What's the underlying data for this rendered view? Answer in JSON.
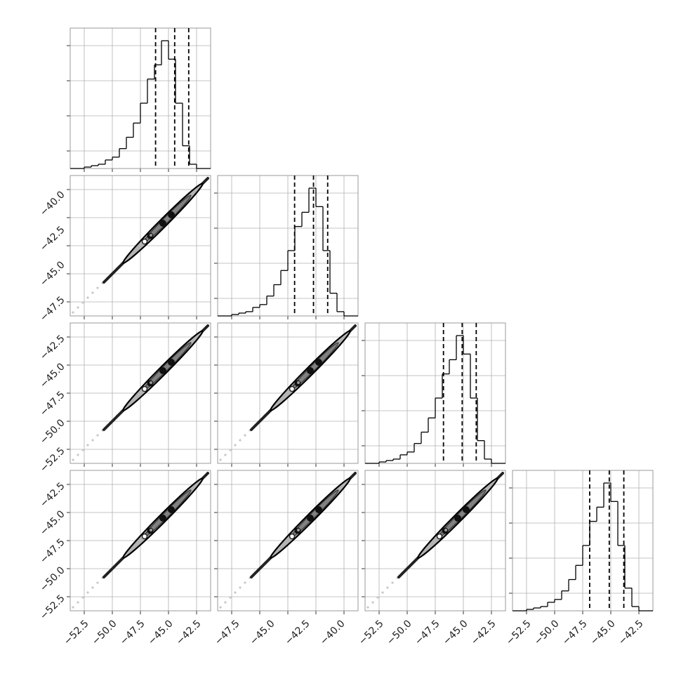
{
  "chart_data": {
    "type": "corner",
    "n_params": 4,
    "grid": true,
    "colors": {
      "line": "#000000",
      "grid": "#b0b0b0",
      "axes": "#999999",
      "fill": "#b3b3b3"
    },
    "column_ticks": [
      [
        "−52.5",
        "−50.0",
        "−47.5",
        "−45.0",
        "−42.5"
      ],
      [
        "−47.5",
        "−45.0",
        "−42.5",
        "−40.0"
      ],
      [
        "−52.5",
        "−50.0",
        "−47.5",
        "−45.0",
        "−42.5"
      ],
      [
        "−52.5",
        "−50.0",
        "−47.5",
        "−45.0",
        "−42.5"
      ]
    ],
    "row_ticks": [
      [],
      [
        "−40.0",
        "−42.5",
        "−45.0",
        "−47.5"
      ],
      [
        "−42.5",
        "−45.0",
        "−47.5",
        "−50.0",
        "−52.5"
      ],
      [
        "−42.5",
        "−45.0",
        "−47.5",
        "−50.0",
        "−52.5"
      ]
    ],
    "marginals": [
      {
        "range": [
          -54.3,
          -41.8
        ],
        "edges": [
          -54.3,
          -53.675,
          -53.05,
          -52.425,
          -51.8,
          -51.175,
          -50.55,
          -49.925,
          -49.3,
          -48.675,
          -48.05,
          -47.425,
          -46.8,
          -46.175,
          -45.55,
          -44.925,
          -44.3,
          -43.675,
          -43.05,
          -42.425,
          -41.8
        ],
        "counts": [
          0,
          0,
          1,
          2,
          3,
          6,
          8,
          14,
          22,
          32,
          46,
          63,
          73,
          90,
          77,
          46,
          16,
          3,
          0,
          0
        ],
        "quantiles": [
          -46.7,
          -45.0,
          -43.75
        ]
      },
      {
        "range": [
          -50.0,
          -39.6
        ],
        "edges": [
          -50.0,
          -49.48,
          -48.96,
          -48.44,
          -47.92,
          -47.4,
          -46.88,
          -46.36,
          -45.84,
          -45.32,
          -44.8,
          -44.28,
          -43.76,
          -43.24,
          -42.72,
          -42.2,
          -41.68,
          -41.16,
          -40.64,
          -40.12,
          -39.6
        ],
        "counts": [
          0,
          0,
          1,
          2,
          3,
          6,
          8,
          14,
          22,
          32,
          46,
          63,
          73,
          90,
          77,
          46,
          16,
          3,
          0,
          0
        ],
        "quantiles": [
          -44.3,
          -42.9,
          -41.85
        ]
      },
      {
        "range": [
          -54.6,
          -42.6
        ],
        "edges": [
          -54.6,
          -54.0,
          -53.4,
          -52.8,
          -52.2,
          -51.6,
          -51.0,
          -50.4,
          -49.8,
          -49.2,
          -48.6,
          -48.0,
          -47.4,
          -46.8,
          -46.2,
          -45.6,
          -45.0,
          -44.4,
          -43.8,
          -43.2,
          -42.6
        ],
        "counts": [
          0,
          0,
          1,
          2,
          3,
          6,
          8,
          14,
          22,
          32,
          46,
          63,
          73,
          90,
          77,
          46,
          16,
          3,
          0,
          0
        ],
        "quantiles": [
          -47.9,
          -46.3,
          -45.1
        ]
      },
      {
        "range": [
          -53.3,
          -42.2
        ],
        "edges": [
          -53.3,
          -52.745,
          -52.19,
          -51.635,
          -51.08,
          -50.525,
          -49.97,
          -49.415,
          -48.86,
          -48.305,
          -47.75,
          -47.195,
          -46.64,
          -46.085,
          -45.53,
          -44.975,
          -44.42,
          -43.865,
          -43.31,
          -42.755,
          -42.2
        ],
        "counts": [
          0,
          0,
          1,
          2,
          3,
          6,
          8,
          14,
          22,
          32,
          46,
          63,
          73,
          90,
          77,
          46,
          16,
          3,
          0,
          0
        ],
        "quantiles": [
          -47.2,
          -45.65,
          -44.5
        ]
      }
    ]
  }
}
